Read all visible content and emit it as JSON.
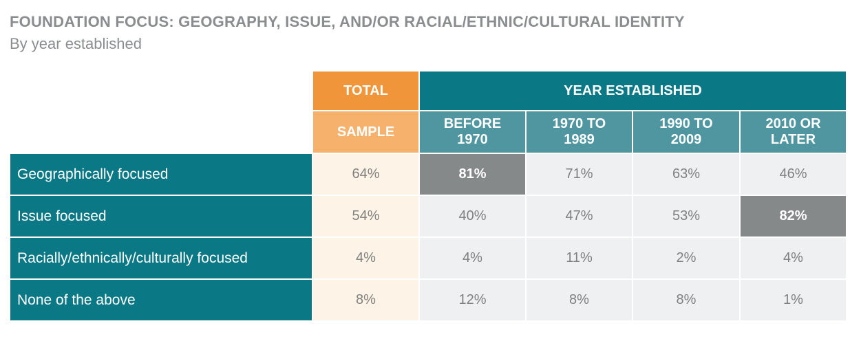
{
  "title": "FOUNDATION FOCUS: GEOGRAPHY, ISSUE, AND/OR RACIAL/ETHNIC/CULTURAL IDENTITY",
  "subtitle": "By year established",
  "chart_data": {
    "type": "table",
    "header": {
      "total_top": "TOTAL",
      "total_bottom": "SAMPLE",
      "group": "YEAR ESTABLISHED",
      "columns": [
        [
          "BEFORE",
          "1970"
        ],
        [
          "1970 TO",
          "1989"
        ],
        [
          "1990 TO",
          "2009"
        ],
        [
          "2010 OR",
          "LATER"
        ]
      ]
    },
    "rows": [
      {
        "label": "Geographically focused",
        "sample": "64%",
        "values": [
          "81%",
          "71%",
          "63%",
          "46%"
        ],
        "highlight": 0
      },
      {
        "label": "Issue focused",
        "sample": "54%",
        "values": [
          "40%",
          "47%",
          "53%",
          "82%"
        ],
        "highlight": 3
      },
      {
        "label": "Racially/ethnically/culturally focused",
        "sample": "4%",
        "values": [
          "4%",
          "11%",
          "2%",
          "4%"
        ],
        "highlight": -1
      },
      {
        "label": "None of the above",
        "sample": "8%",
        "values": [
          "12%",
          "8%",
          "8%",
          "1%"
        ],
        "highlight": -1
      }
    ],
    "colors": {
      "teal": "#0b7886",
      "teal_light": "#4f96a0",
      "orange": "#f0953a",
      "orange_light": "#f6b26d",
      "cream": "#fdf3e6",
      "grey_cell": "#eef0f1",
      "highlight": "#868989"
    }
  }
}
